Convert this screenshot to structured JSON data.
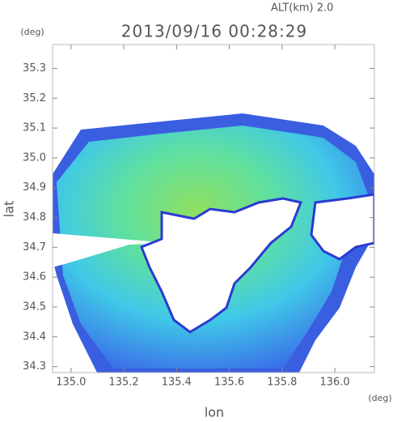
{
  "chart_data": {
    "type": "radar-map",
    "altitude": "ALT(km) 2.0",
    "title": "2013/09/16 00:28:29",
    "ylabel": "lat",
    "yunit": "(deg)",
    "xlabel": "lon",
    "xunit": "(deg)",
    "xlim": [
      134.93,
      136.15
    ],
    "ylim": [
      34.28,
      35.38
    ],
    "xticks": [
      {
        "value": 135,
        "label": "135.0"
      },
      135.2,
      135.4,
      135.6,
      135.8,
      {
        "value": 136,
        "label": "136.0"
      }
    ],
    "yticks": [
      34.3,
      34.4,
      34.5,
      34.6,
      34.7,
      34.8,
      34.9,
      {
        "value": 35,
        "label": "35.0"
      },
      35.1,
      35.2,
      35.3
    ]
  }
}
